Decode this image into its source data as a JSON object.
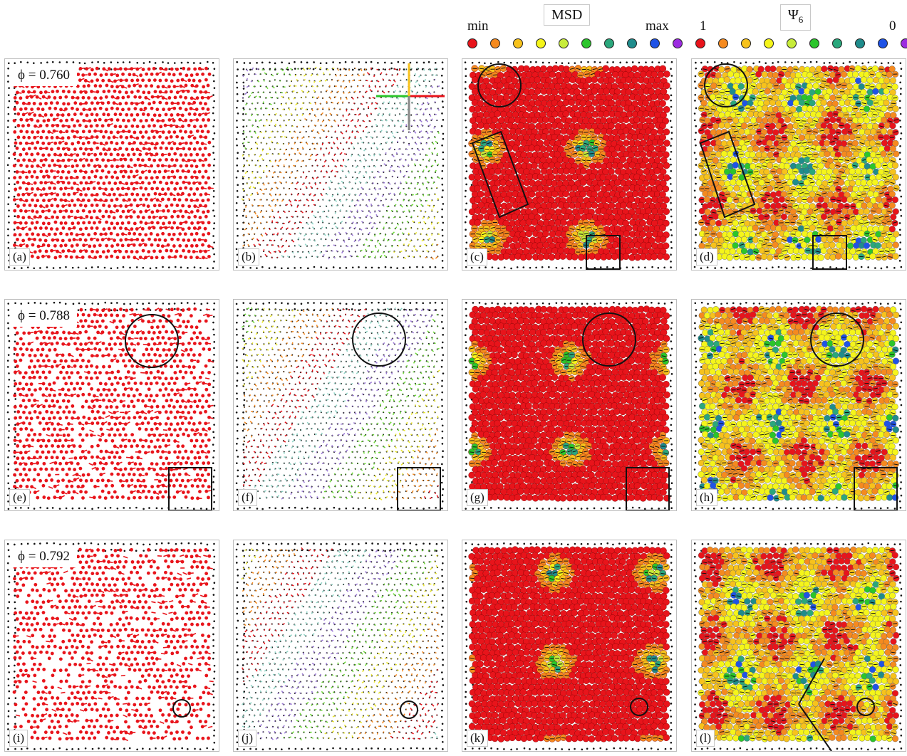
{
  "legend": {
    "msd": {
      "title": "MSD",
      "min_label": "min",
      "max_label": "max"
    },
    "psi6": {
      "title_symbol": "Ψ",
      "title_sub": "6",
      "high_label": "1",
      "low_label": "0"
    },
    "colors": [
      "#e8141b",
      "#f58a1f",
      "#f7c21c",
      "#f5f51a",
      "#c7ec3a",
      "#2bc52b",
      "#2aa77c",
      "#1f8c8c",
      "#1f53e6",
      "#9c2be0"
    ]
  },
  "rows": [
    {
      "phi": "ϕ = 0.760",
      "labels": [
        "(a)",
        "(b)",
        "(c)",
        "(d)"
      ]
    },
    {
      "phi": "ϕ = 0.788",
      "labels": [
        "(e)",
        "(f)",
        "(g)",
        "(h)"
      ]
    },
    {
      "phi": "ϕ = 0.792",
      "labels": [
        "(i)",
        "(j)",
        "(k)",
        "(l)"
      ]
    }
  ]
}
